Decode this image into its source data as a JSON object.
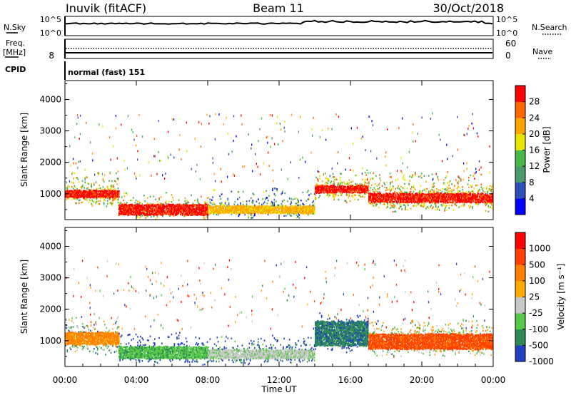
{
  "header": {
    "station": "Inuvik (fitACF)",
    "beam": "Beam 11",
    "date": "30/Oct/2018"
  },
  "noise_panel": {
    "left_label": "N.Sky",
    "right_label": "N.Search",
    "left_ticks": [
      "10^5",
      "10^0"
    ],
    "right_ticks": [
      "10^5",
      "10^0"
    ]
  },
  "freq_panel": {
    "left_label_1": "Freq.",
    "left_label_2": "[MHz]",
    "left_ticks": [
      "8"
    ],
    "right_label": "Nave",
    "right_ticks": [
      "60",
      "0"
    ]
  },
  "cpid": {
    "label": "CPID",
    "value": "normal (fast) 151"
  },
  "chart_data": [
    {
      "type": "heatmap",
      "name": "power-panel",
      "ylabel": "Slant Range [km]",
      "yticks": [
        "4000",
        "3000",
        "2000",
        "1000"
      ],
      "ylim": [
        180,
        4600
      ],
      "x_range": [
        "00:00",
        "24:00"
      ],
      "colorbar_label": "Power [dB]",
      "colorbar_ticks": [
        "28",
        "24",
        "20",
        "16",
        "12",
        "8",
        "4"
      ],
      "colors": [
        "#0000ff",
        "#2f4fb8",
        "#4a9a6c",
        "#48b848",
        "#e6e600",
        "#ffa500",
        "#ff6600",
        "#ff0000"
      ],
      "regions": [
        {
          "t": [
            0.0,
            3.0
          ],
          "core": [
            850,
            1100
          ],
          "halo": [
            650,
            1700
          ],
          "core_level": 7
        },
        {
          "t": [
            3.0,
            8.0
          ],
          "core": [
            300,
            650
          ],
          "halo": [
            250,
            1000
          ],
          "core_level": 7
        },
        {
          "t": [
            8.0,
            14.0
          ],
          "core": [
            350,
            600
          ],
          "halo": [
            300,
            1100
          ],
          "core_level": 5
        },
        {
          "t": [
            14.0,
            17.0
          ],
          "core": [
            1000,
            1250
          ],
          "halo": [
            800,
            1700
          ],
          "core_level": 7
        },
        {
          "t": [
            17.0,
            24.0
          ],
          "core": [
            700,
            1000
          ],
          "halo": [
            500,
            1600
          ],
          "core_level": 7
        }
      ]
    },
    {
      "type": "heatmap",
      "name": "velocity-panel",
      "xlabel": "Time UT",
      "ylabel": "Slant Range [km]",
      "yticks": [
        "4000",
        "3000",
        "2000",
        "1000"
      ],
      "ylim": [
        180,
        4600
      ],
      "xticks": [
        "00:00",
        "04:00",
        "08:00",
        "12:00",
        "16:00",
        "20:00",
        "00:00"
      ],
      "colorbar_label": "Velocity [m s⁻¹]",
      "colorbar_ticks": [
        "1000",
        "500",
        "100",
        "25",
        "-25",
        "-100",
        "-500",
        "-1000"
      ],
      "colors": [
        "#2040c0",
        "#2e8b57",
        "#58c848",
        "#c8c8c8",
        "#ffaa00",
        "#ff7f00",
        "#ff4000",
        "#ff0000"
      ],
      "regions": [
        {
          "t": [
            0.0,
            3.0
          ],
          "core": [
            850,
            1250
          ],
          "halo": [
            600,
            1700
          ],
          "core_level": 5
        },
        {
          "t": [
            3.0,
            8.0
          ],
          "core": [
            400,
            800
          ],
          "halo": [
            300,
            1200
          ],
          "core_level": 2
        },
        {
          "t": [
            8.0,
            14.0
          ],
          "core": [
            400,
            700
          ],
          "halo": [
            300,
            1100
          ],
          "core_level": 3
        },
        {
          "t": [
            14.0,
            17.0
          ],
          "core": [
            800,
            1600
          ],
          "halo": [
            700,
            1800
          ],
          "core_level": 1
        },
        {
          "t": [
            17.0,
            24.0
          ],
          "core": [
            700,
            1200
          ],
          "halo": [
            500,
            1600
          ],
          "core_level": 6
        }
      ]
    }
  ]
}
